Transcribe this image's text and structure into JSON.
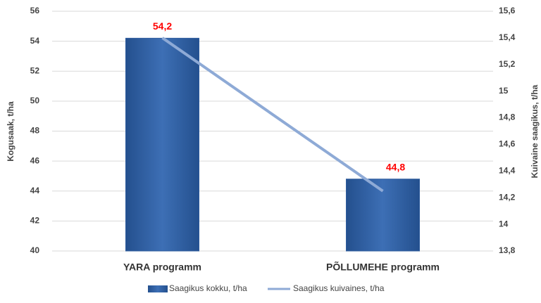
{
  "chart_data": {
    "type": "bar",
    "categories": [
      "YARA programm",
      "PÕLLUMEHE programm"
    ],
    "ylabel": "Kogusaak, t/ha",
    "y2label": "Kuivaine saagikus, t/ha",
    "ylim": [
      40,
      56
    ],
    "yticks": [
      40,
      42,
      44,
      46,
      48,
      50,
      52,
      54,
      56
    ],
    "y2lim": [
      13.8,
      15.6
    ],
    "y2ticks": [
      {
        "value": 13.8,
        "label": "13,8"
      },
      {
        "value": 14,
        "label": "14"
      },
      {
        "value": 14.2,
        "label": "14,2"
      },
      {
        "value": 14.4,
        "label": "14,4"
      },
      {
        "value": 14.6,
        "label": "14,6"
      },
      {
        "value": 14.8,
        "label": "14,8"
      },
      {
        "value": 15,
        "label": "15"
      },
      {
        "value": 15.2,
        "label": "15,2"
      },
      {
        "value": 15.4,
        "label": "15,4"
      },
      {
        "value": 15.6,
        "label": "15,6"
      }
    ],
    "grid": true,
    "legend": "bottom",
    "series": [
      {
        "name": "Saagikus kokku, t/ha",
        "type": "bar",
        "color": "#2e5c9e",
        "values": [
          54.2,
          44.8
        ],
        "value_labels": [
          "54,2",
          "44,8"
        ]
      },
      {
        "name": "Saagikus kuivaines, t/ha",
        "type": "line",
        "axis": "y2",
        "color": "#8eaad6",
        "values": [
          15.4,
          14.25
        ]
      }
    ]
  }
}
